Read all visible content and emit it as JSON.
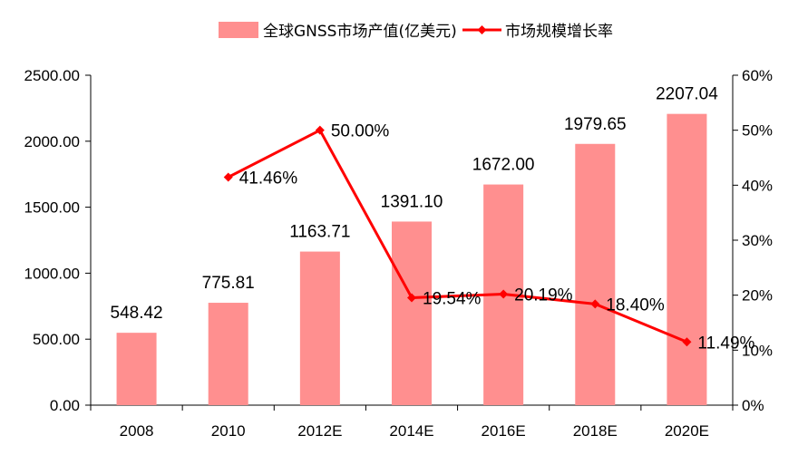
{
  "chart_data": {
    "type": "bar+line",
    "categories": [
      "2008",
      "2010",
      "2012E",
      "2014E",
      "2016E",
      "2018E",
      "2020E"
    ],
    "series": [
      {
        "name": "全球GNSS市场产值(亿美元)",
        "type": "bar",
        "axis": "left",
        "color": "#FF8F8F",
        "values": [
          548.42,
          775.81,
          1163.71,
          1391.1,
          1672.0,
          1979.65,
          2207.04
        ],
        "labels": [
          "548.42",
          "775.81",
          "1163.71",
          "1391.10",
          "1672.00",
          "1979.65",
          "2207.04"
        ]
      },
      {
        "name": "市场规模增长率",
        "type": "line",
        "axis": "right",
        "color": "#FF0000",
        "values": [
          null,
          41.46,
          50.0,
          19.54,
          20.19,
          18.4,
          11.49
        ],
        "labels": [
          "",
          "41.46%",
          "50.00%",
          "19.54%",
          "20.19%",
          "18.40%",
          "11.49%"
        ]
      }
    ],
    "y_left": {
      "ylim": [
        0,
        2500
      ],
      "ticks": [
        0,
        500,
        1000,
        1500,
        2000,
        2500
      ],
      "tick_labels": [
        "0.00",
        "500.00",
        "1000.00",
        "1500.00",
        "2000.00",
        "2500.00"
      ]
    },
    "y_right": {
      "ylim": [
        0,
        60
      ],
      "ticks": [
        0,
        10,
        20,
        30,
        40,
        50,
        60
      ],
      "tick_labels": [
        "0%",
        "10%",
        "20%",
        "30%",
        "40%",
        "50%",
        "60%"
      ]
    },
    "legend": {
      "position": "top-center",
      "items": [
        {
          "label": "全球GNSS市场产值(亿美元)",
          "marker": "bar"
        },
        {
          "label": "市场规模增长率",
          "marker": "line-diamond"
        }
      ]
    },
    "grid": false
  }
}
